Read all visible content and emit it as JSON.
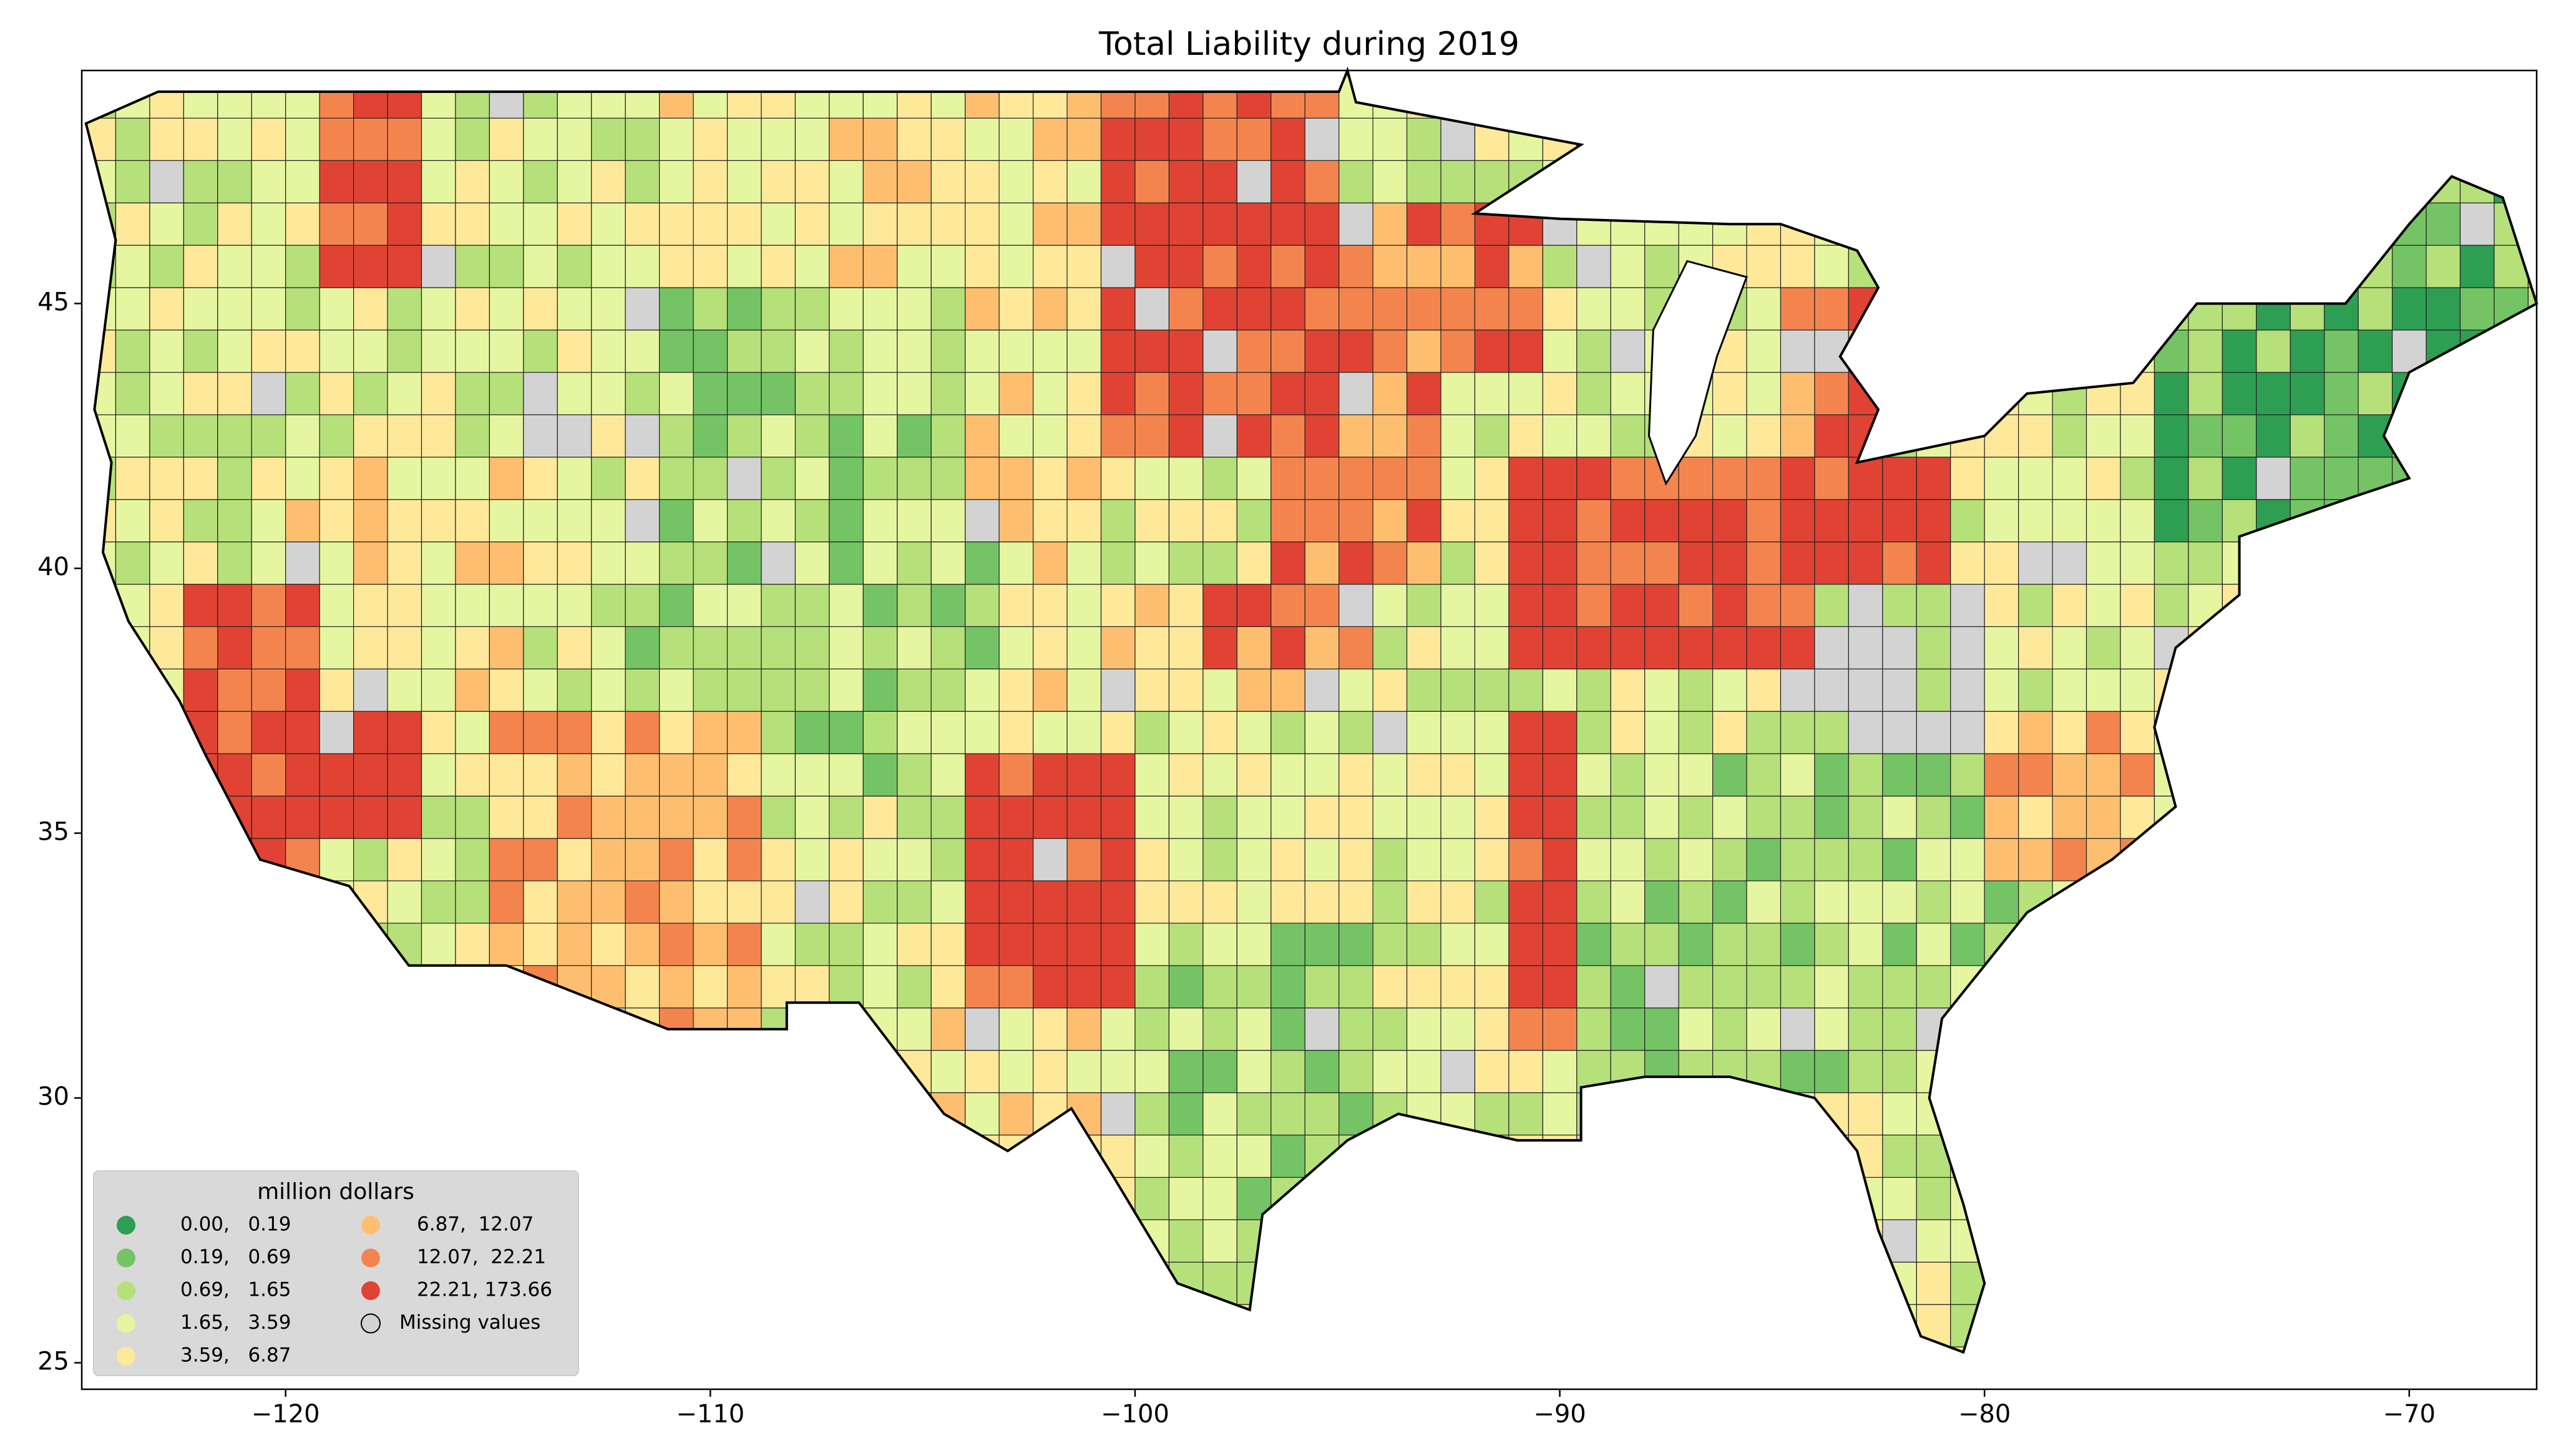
{
  "map": {
    "title": "Total Liability during 2019",
    "xlim": [
      -124.8,
      -67.0
    ],
    "ylim": [
      24.5,
      49.4
    ],
    "xticks": [
      {
        "value": -120,
        "label": "−120"
      },
      {
        "value": -110,
        "label": "−110"
      },
      {
        "value": -100,
        "label": "−100"
      },
      {
        "value": -90,
        "label": "−90"
      },
      {
        "value": -80,
        "label": "−80"
      },
      {
        "value": -70,
        "label": "−70"
      }
    ],
    "yticks": [
      25,
      30,
      35,
      40,
      45
    ],
    "legend": {
      "title": "million dollars",
      "entries": [
        {
          "label": "0.00,   0.19",
          "color": "#2e9e53"
        },
        {
          "label": "0.19,   0.69",
          "color": "#74c365"
        },
        {
          "label": "0.69,   1.65",
          "color": "#b6e07a"
        },
        {
          "label": "1.65,   3.59",
          "color": "#e6f5a0"
        },
        {
          "label": "3.59,   6.87",
          "color": "#fee99a"
        },
        {
          "label": "6.87,  12.07",
          "color": "#fdbf6f"
        },
        {
          "label": "12.07,  22.21",
          "color": "#f4844e"
        },
        {
          "label": "22.21, 173.66",
          "color": "#e04334"
        }
      ],
      "missing": {
        "label": "Missing values",
        "color": "#d3d3d3"
      }
    }
  }
}
